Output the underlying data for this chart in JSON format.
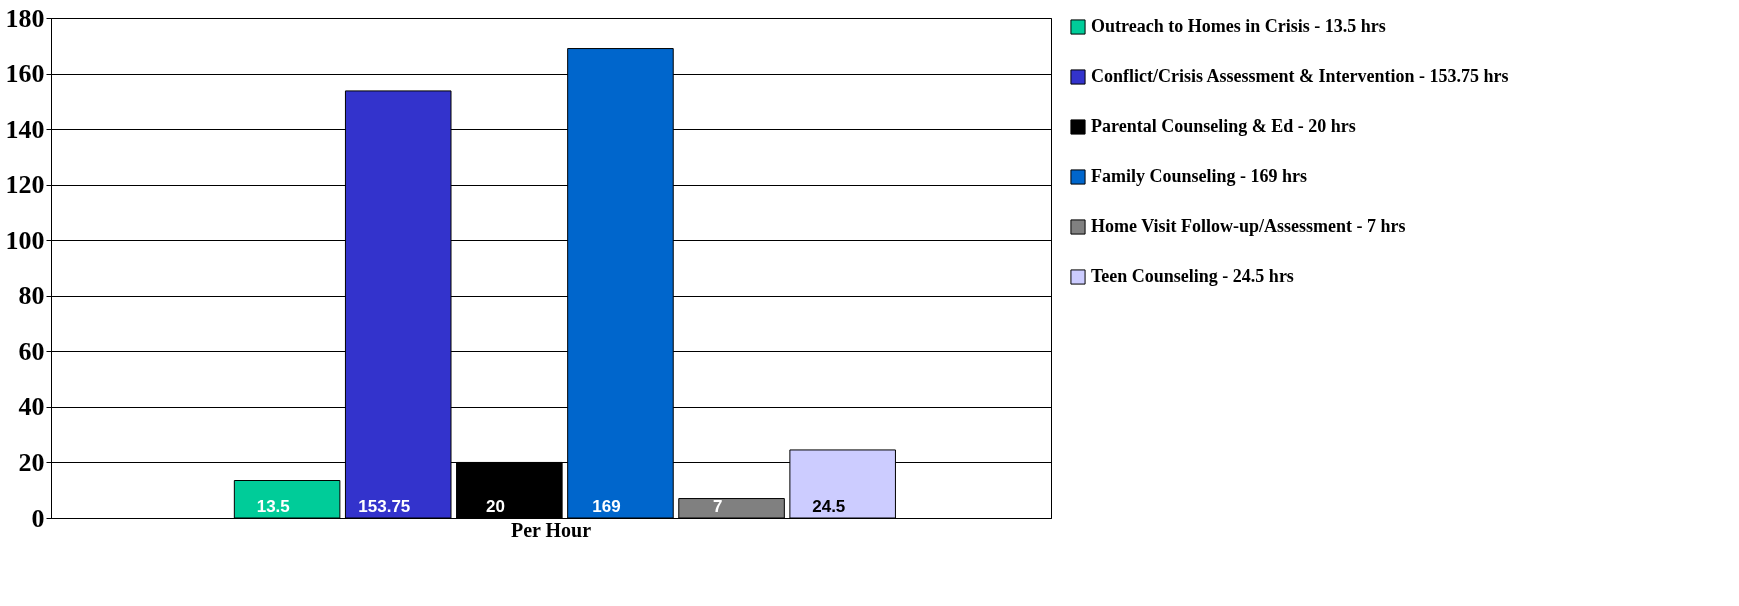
{
  "chart_data": {
    "type": "bar",
    "categories": [
      "Per Hour"
    ],
    "series": [
      {
        "name": "Outreach to Homes in Crisis - 13.5 hrs",
        "color": "#00cc99",
        "values": [
          13.5
        ]
      },
      {
        "name": "Conflict/Crisis Assessment & Intervention - 153.75 hrs",
        "color": "#3333cc",
        "values": [
          153.75
        ]
      },
      {
        "name": "Parental Counseling & Ed - 20 hrs",
        "color": "#000000",
        "values": [
          20
        ]
      },
      {
        "name": "Family Counseling - 169 hrs",
        "color": "#0066cc",
        "values": [
          169
        ]
      },
      {
        "name": "Home Visit Follow-up/Assessment - 7 hrs",
        "color": "#808080",
        "values": [
          7
        ]
      },
      {
        "name": "Teen Counseling - 24.5 hrs",
        "color": "#ccccff",
        "values": [
          24.5
        ]
      }
    ],
    "ylim": [
      0,
      180
    ],
    "yticks": [
      0,
      20,
      40,
      60,
      80,
      100,
      120,
      140,
      160,
      180
    ],
    "grid": "y",
    "legend": "right",
    "data_labels": true
  }
}
